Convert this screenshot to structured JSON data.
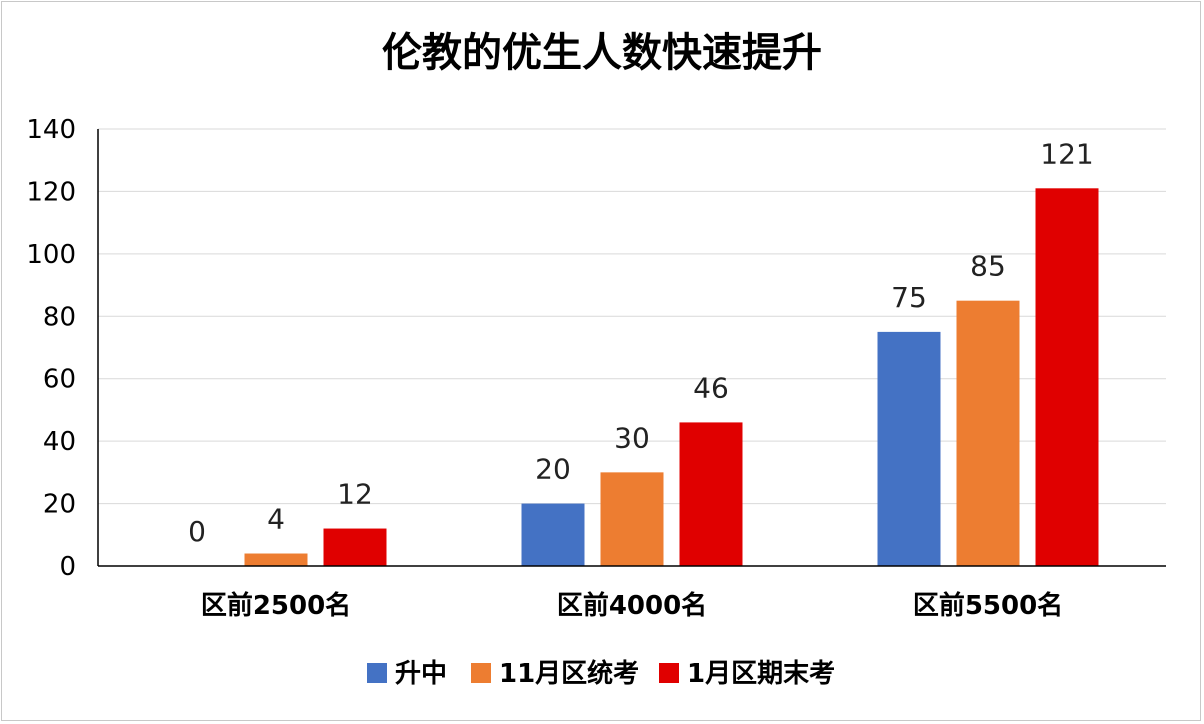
{
  "chart_data": {
    "type": "bar",
    "title": "伦教的优生人数快速提升",
    "categories": [
      "区前2500名",
      "区前4000名",
      "区前5500名"
    ],
    "series": [
      {
        "name": "升中",
        "color": "#4472C4",
        "values": [
          0,
          20,
          75
        ]
      },
      {
        "name": "11月区统考",
        "color": "#ED7D31",
        "values": [
          4,
          30,
          85
        ]
      },
      {
        "name": "1月区期末考",
        "color": "#E00000",
        "values": [
          12,
          46,
          121
        ]
      }
    ],
    "yticks": [
      0,
      20,
      40,
      60,
      80,
      100,
      120,
      140
    ],
    "ylim": [
      0,
      140
    ],
    "grid": true,
    "legend_position": "bottom"
  }
}
